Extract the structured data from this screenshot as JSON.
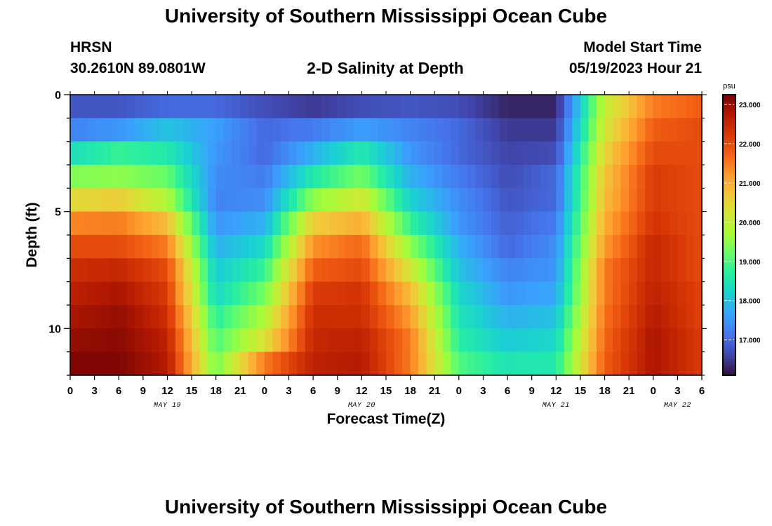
{
  "page": {
    "title": "University of Southern Mississippi Ocean Cube",
    "footer_title": "University of Southern Mississippi Ocean Cube",
    "station": "HRSN",
    "coordinates": "30.2610N  89.0801W",
    "subtitle": "2-D Salinity at Depth",
    "model_start_label": "Model Start Time",
    "model_start_value": "05/19/2023 Hour 21"
  },
  "chart_data": {
    "type": "heatmap",
    "title": "2-D Salinity at Depth",
    "xlabel": "Forecast Time(Z)",
    "ylabel": "Depth (ft)",
    "x_tick_labels": [
      "0",
      "3",
      "6",
      "9",
      "12",
      "15",
      "18",
      "21",
      "0",
      "3",
      "6",
      "9",
      "12",
      "15",
      "18",
      "21",
      "0",
      "3",
      "6",
      "9",
      "12",
      "15",
      "18",
      "21",
      "0",
      "3",
      "6"
    ],
    "x_range_hours": [
      0,
      78
    ],
    "date_labels": [
      {
        "label": "MAY 19",
        "hour": 12
      },
      {
        "label": "MAY 20",
        "hour": 36
      },
      {
        "label": "MAY 21",
        "hour": 60
      },
      {
        "label": "MAY 22",
        "hour": 75
      }
    ],
    "y_tick_labels": [
      "0",
      "5",
      "10"
    ],
    "ylim": [
      0,
      12
    ],
    "y_inverted": true,
    "colorbar": {
      "unit": "psu",
      "range": [
        16.1,
        23.25
      ],
      "tick_labels": [
        "23.000",
        "22.000",
        "21.000",
        "20.000",
        "19.000",
        "18.000",
        "17.000"
      ],
      "colormap": [
        "#30123b",
        "#4145ab",
        "#4675ed",
        "#39a2fc",
        "#1bcfd4",
        "#24eca6",
        "#61fc6c",
        "#a4fc3b",
        "#d1e834",
        "#f3c63a",
        "#fe9b2d",
        "#f36315",
        "#d93806",
        "#b11901",
        "#7a0403"
      ]
    },
    "x_hours": [
      0,
      6,
      12,
      18,
      24,
      30,
      36,
      42,
      48,
      54,
      60,
      66,
      72,
      78
    ],
    "depth_levels_ft": [
      0.5,
      1.5,
      2.5,
      3.5,
      4.5,
      5.5,
      6.5,
      7.5,
      8.5,
      9.5,
      10.5,
      11.5
    ],
    "salinity_psu": [
      [
        16.8,
        16.8,
        17.0,
        17.0,
        16.7,
        16.5,
        16.7,
        16.8,
        16.7,
        16.3,
        16.3,
        20.0,
        21.5,
        21.8
      ],
      [
        17.3,
        17.5,
        18.0,
        17.6,
        17.0,
        17.2,
        17.6,
        17.3,
        17.0,
        16.5,
        16.5,
        20.2,
        21.8,
        22.0
      ],
      [
        18.4,
        18.8,
        18.6,
        17.5,
        17.0,
        17.8,
        18.6,
        17.5,
        17.0,
        16.6,
        16.7,
        20.5,
        22.0,
        22.0
      ],
      [
        19.4,
        19.5,
        19.2,
        17.4,
        17.2,
        18.6,
        19.3,
        17.8,
        17.2,
        16.7,
        17.0,
        20.7,
        22.2,
        22.0
      ],
      [
        20.4,
        20.6,
        19.8,
        17.3,
        17.4,
        19.5,
        20.2,
        18.2,
        17.4,
        16.8,
        17.0,
        20.8,
        22.2,
        22.0
      ],
      [
        21.4,
        21.5,
        20.8,
        17.5,
        17.8,
        20.6,
        21.0,
        18.8,
        17.5,
        16.9,
        17.2,
        21.0,
        22.3,
        22.0
      ],
      [
        22.0,
        22.0,
        21.5,
        17.8,
        18.3,
        21.3,
        21.7,
        19.5,
        17.8,
        17.0,
        17.4,
        21.2,
        22.5,
        22.0
      ],
      [
        22.4,
        22.5,
        22.0,
        18.1,
        18.8,
        21.8,
        22.0,
        20.2,
        18.0,
        17.3,
        17.5,
        21.5,
        22.5,
        22.0
      ],
      [
        22.6,
        22.8,
        22.2,
        18.3,
        19.3,
        22.2,
        22.3,
        20.8,
        18.3,
        17.5,
        17.7,
        21.5,
        22.6,
        22.1
      ],
      [
        22.8,
        23.0,
        22.4,
        18.7,
        19.8,
        22.4,
        22.4,
        21.2,
        18.5,
        17.8,
        18.0,
        21.6,
        22.7,
        22.1
      ],
      [
        23.0,
        23.1,
        22.6,
        19.0,
        20.3,
        22.5,
        22.6,
        21.5,
        18.7,
        18.1,
        18.3,
        21.7,
        22.8,
        22.2
      ],
      [
        23.2,
        23.2,
        22.7,
        19.3,
        21.5,
        22.6,
        22.7,
        21.5,
        19.0,
        18.5,
        18.6,
        21.8,
        22.8,
        22.2
      ]
    ]
  }
}
